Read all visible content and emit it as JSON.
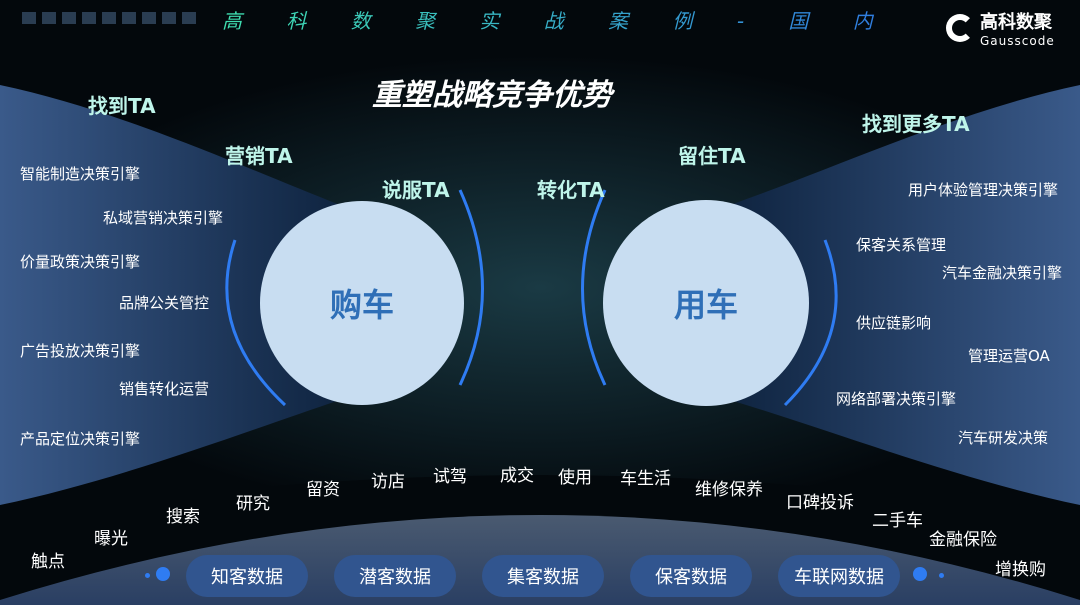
{
  "header": {
    "series_title": "高 科 数 聚 实 战 案 例 - 国 内",
    "logo_cn": "高科数聚",
    "logo_en": "Gausscode"
  },
  "title": "重塑战略竞争优势",
  "stages": {
    "find": "找到TA",
    "market": "营销TA",
    "persuade": "说服TA",
    "convert": "转化TA",
    "retain": "留住TA",
    "find_more": "找到更多TA"
  },
  "circles": {
    "buy": "购车",
    "use": "用车"
  },
  "left_items": [
    "智能制造决策引擎",
    "私域营销决策引擎",
    "价量政策决策引擎",
    "品牌公关管控",
    "广告投放决策引擎",
    "销售转化运营",
    "产品定位决策引擎"
  ],
  "right_items": [
    "用户体验管理决策引擎",
    "保客关系管理",
    "汽车金融决策引擎",
    "供应链影响",
    "管理运营OA",
    "网络部署决策引擎",
    "汽车研发决策"
  ],
  "journey": [
    "触点",
    "曝光",
    "搜索",
    "研究",
    "留资",
    "访店",
    "试驾",
    "成交",
    "使用",
    "车生活",
    "维修保养",
    "口碑投诉",
    "二手车",
    "金融保险",
    "增换购"
  ],
  "data_pills": [
    "知客数据",
    "潜客数据",
    "集客数据",
    "保客数据",
    "车联网数据"
  ],
  "colors": {
    "accent": "#2f7cf2",
    "pill": "#31558f",
    "circle": "#c8ddf1",
    "circle_text": "#2f6fb7",
    "stage_text": "#bff5ea"
  }
}
